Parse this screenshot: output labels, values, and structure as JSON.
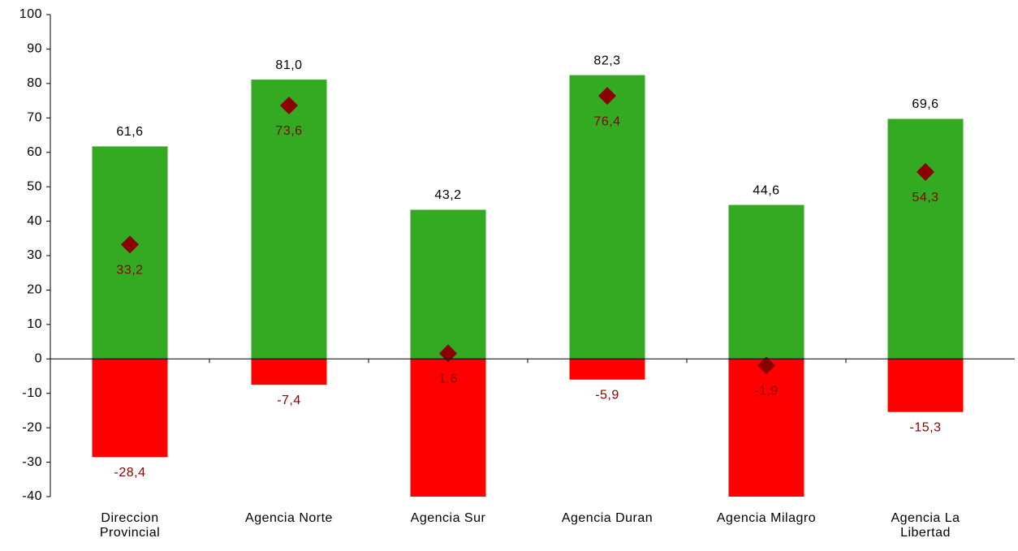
{
  "chart_data": {
    "type": "bar",
    "categories": [
      "Direccion Provincial",
      "Agencia Norte",
      "Agencia Sur",
      "Agencia Duran",
      "Agencia Milagro",
      "Agencia La Libertad"
    ],
    "series": [
      {
        "color": "#33aa22",
        "values": [
          61.6,
          81.0,
          43.2,
          82.3,
          44.6,
          69.6
        ],
        "value_labels": [
          "61,6",
          "81,0",
          "43,2",
          "82,3",
          "44,6",
          "69,6"
        ],
        "label_color": "#000000"
      },
      {
        "color": "#ff0000",
        "values": [
          -28.4,
          -7.4,
          -41.6,
          -5.9,
          -46.5,
          -15.3
        ],
        "value_labels": [
          "-28,4",
          "-7,4",
          null,
          "-5,9",
          null,
          "-15,3"
        ],
        "label_color": "#8b0000"
      },
      {
        "type": "scatter",
        "marker": "diamond",
        "color": "#8b0000",
        "values": [
          33.2,
          73.6,
          1.6,
          76.4,
          -1.9,
          54.3
        ],
        "value_labels": [
          "33,2",
          "73,6",
          "1,6",
          "76,4",
          "-1,9",
          "54,3"
        ],
        "label_color": "#8b0000"
      }
    ],
    "ylim": [
      -40,
      100
    ],
    "yticks": [
      -40,
      -30,
      -20,
      -10,
      0,
      10,
      20,
      30,
      40,
      50,
      60,
      70,
      80,
      90,
      100
    ],
    "grid": false
  }
}
